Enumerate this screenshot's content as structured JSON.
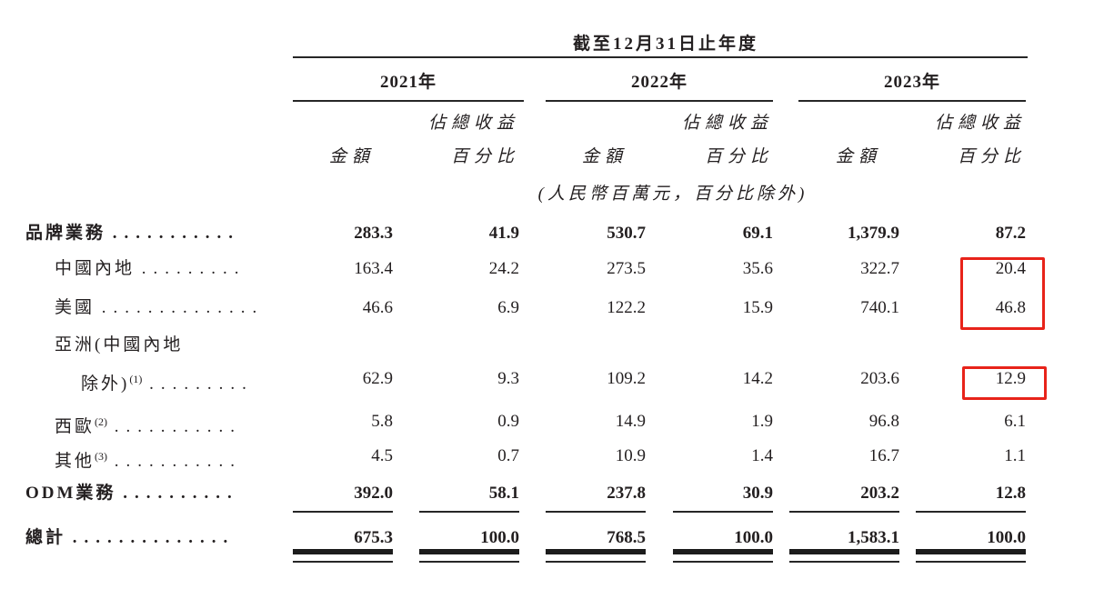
{
  "table": {
    "period_header": "截至12月31日止年度",
    "unit_note": "(人民幣百萬元，百分比除外)",
    "year_groups": [
      {
        "label": "2021年"
      },
      {
        "label": "2022年"
      },
      {
        "label": "2023年"
      }
    ],
    "sub_headers": {
      "amount": "金額",
      "pct_line1": "佔總收益",
      "pct_line2": "百分比"
    },
    "rows": [
      {
        "label": "品牌業務",
        "sup": "",
        "leader": "...........",
        "indent": 0,
        "bold": true,
        "rule": "none",
        "values": [
          "283.3",
          "41.9",
          "530.7",
          "69.1",
          "1,379.9",
          "87.2"
        ]
      },
      {
        "label": "中國內地",
        "sup": "",
        "leader": ".........",
        "indent": 1,
        "bold": false,
        "rule": "none",
        "values": [
          "163.4",
          "24.2",
          "273.5",
          "35.6",
          "322.7",
          "20.4"
        ]
      },
      {
        "label": "美國",
        "sup": "",
        "leader": "..............",
        "indent": 1,
        "bold": false,
        "rule": "none",
        "values": [
          "46.6",
          "6.9",
          "122.2",
          "15.9",
          "740.1",
          "46.8"
        ]
      },
      {
        "label": "亞洲(中國內地",
        "sup": "",
        "leader": "",
        "indent": 1,
        "bold": false,
        "rule": "none",
        "values": [
          "",
          "",
          "",
          "",
          "",
          ""
        ]
      },
      {
        "label": "除外)",
        "sup": "(1)",
        "leader": ".........",
        "indent": 2,
        "bold": false,
        "rule": "none",
        "values": [
          "62.9",
          "9.3",
          "109.2",
          "14.2",
          "203.6",
          "12.9"
        ]
      },
      {
        "label": "西歐",
        "sup": "(2)",
        "leader": "...........",
        "indent": 1,
        "bold": false,
        "rule": "none",
        "values": [
          "5.8",
          "0.9",
          "14.9",
          "1.9",
          "96.8",
          "6.1"
        ]
      },
      {
        "label": "其他",
        "sup": "(3)",
        "leader": "...........",
        "indent": 1,
        "bold": false,
        "rule": "none",
        "values": [
          "4.5",
          "0.7",
          "10.9",
          "1.4",
          "16.7",
          "1.1"
        ]
      },
      {
        "label": "ODM業務",
        "sup": "",
        "leader": "..........",
        "indent": 0,
        "bold": true,
        "rule": "single",
        "values": [
          "392.0",
          "58.1",
          "237.8",
          "30.9",
          "203.2",
          "12.8"
        ]
      },
      {
        "label": "總計",
        "sup": "",
        "leader": "..............",
        "indent": 0,
        "bold": true,
        "rule": "double",
        "values": [
          "675.3",
          "100.0",
          "768.5",
          "100.0",
          "1,583.1",
          "100.0"
        ]
      }
    ],
    "highlights": [
      {
        "year": "2023年",
        "column": "佔總收益百分比",
        "rows": [
          "中國內地",
          "美國"
        ],
        "values": [
          "20.4",
          "46.8"
        ]
      },
      {
        "year": "2023年",
        "column": "佔總收益百分比",
        "rows": [
          "亞洲(中國內地除外)"
        ],
        "values": [
          "12.9"
        ]
      }
    ]
  },
  "colors": {
    "highlight_red": "#e8231a",
    "text": "#231f20",
    "rule": "#262626",
    "background": "#ffffff"
  }
}
